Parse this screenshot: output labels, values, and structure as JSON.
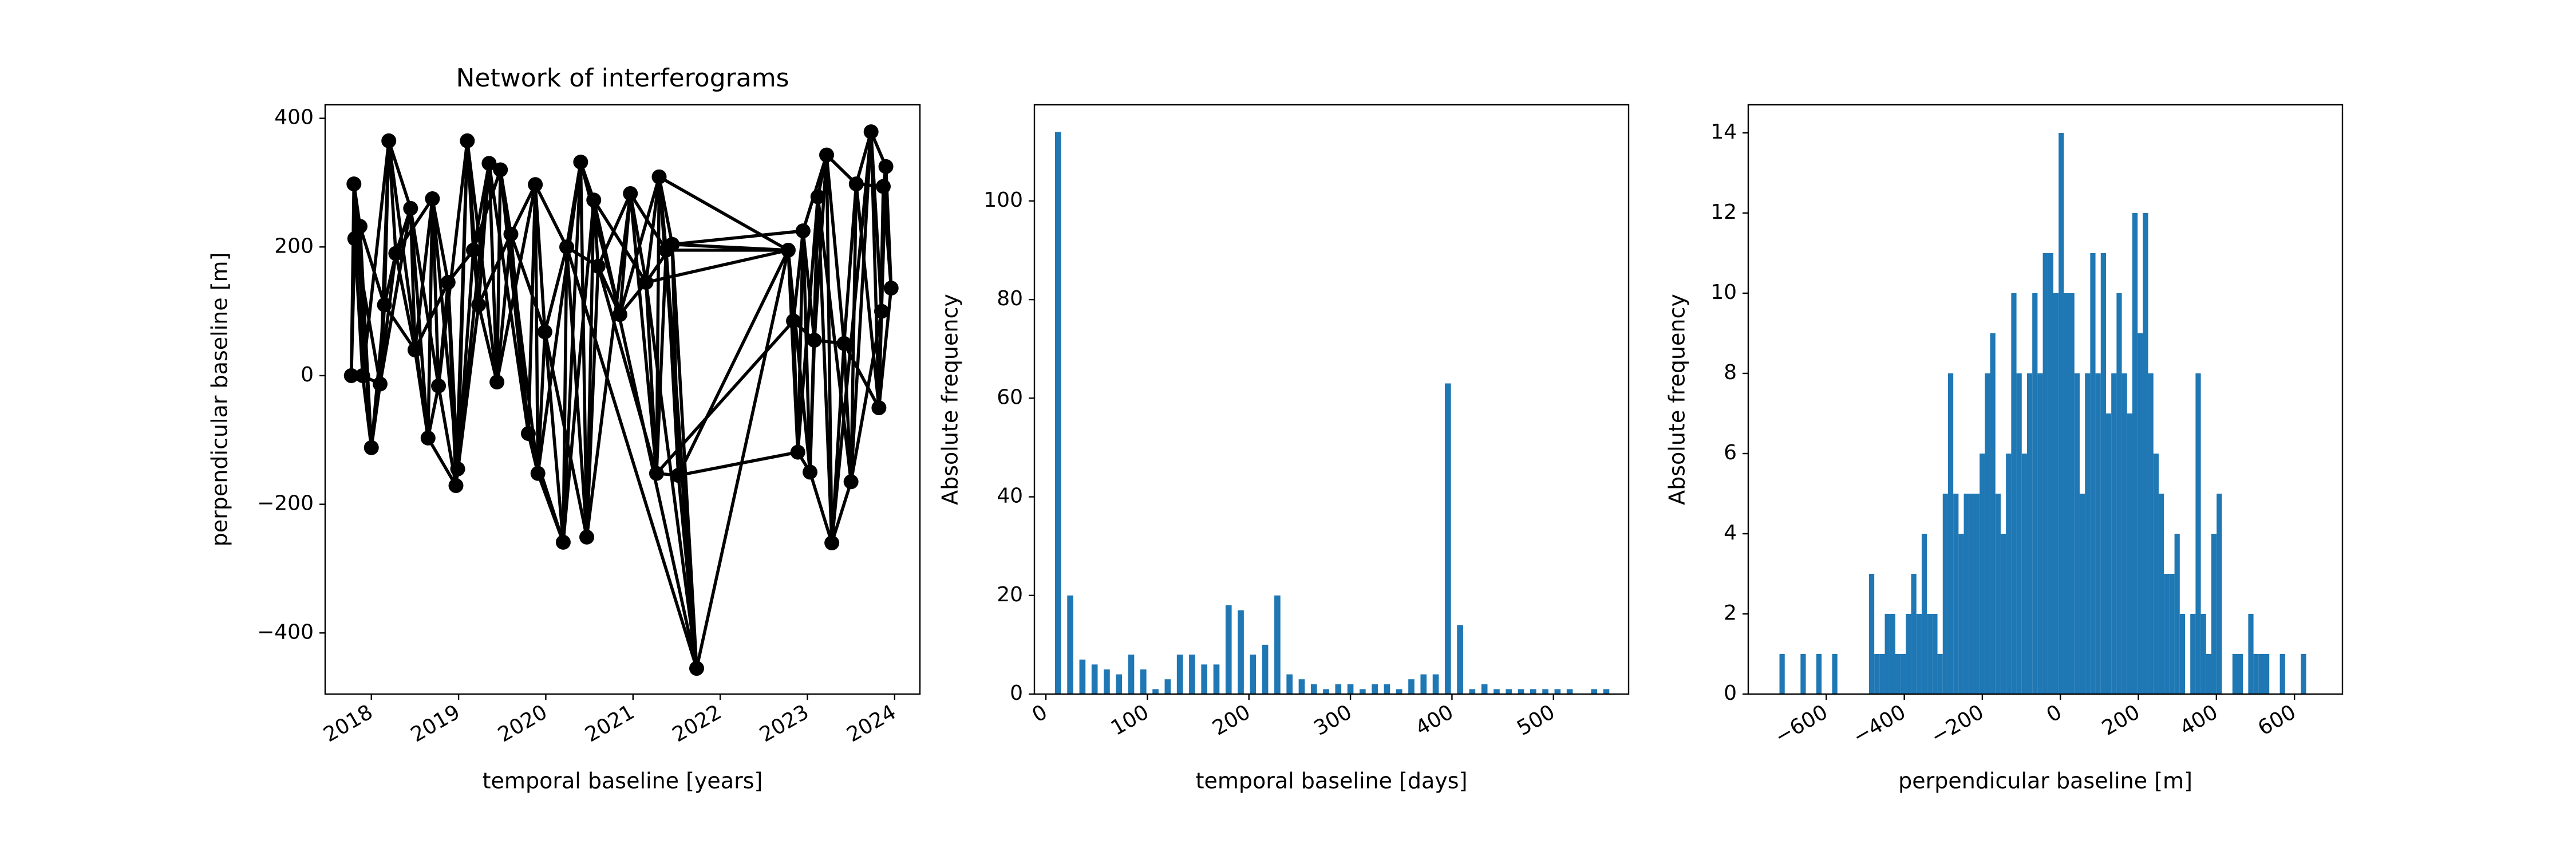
{
  "chart_data": [
    {
      "type": "network",
      "title": "Network of interferograms",
      "xlabel": "temporal baseline [years]",
      "ylabel": "perpendicular baseline [m]",
      "color": "#000000",
      "xlim": [
        2017.47,
        2024.29
      ],
      "xticks": [
        2018,
        2019,
        2020,
        2021,
        2022,
        2023,
        2024
      ],
      "xtick_rotation": 30,
      "ylim": [
        -495,
        421
      ],
      "yticks": [
        {
          "value": -400,
          "label": "−400"
        },
        {
          "value": -200,
          "label": "−200"
        },
        0,
        200,
        400
      ],
      "nodes": {
        "x": [
          2017.77,
          2017.8,
          2017.81,
          2017.87,
          2017.9,
          2018.0,
          2018.1,
          2018.15,
          2018.2,
          2018.28,
          2018.45,
          2018.5,
          2018.65,
          2018.7,
          2018.77,
          2018.88,
          2018.97,
          2018.99,
          2019.1,
          2019.17,
          2019.23,
          2019.35,
          2019.44,
          2019.48,
          2019.6,
          2019.8,
          2019.88,
          2019.91,
          2019.99,
          2020.2,
          2020.24,
          2020.4,
          2020.47,
          2020.55,
          2020.6,
          2020.85,
          2020.97,
          2021.15,
          2021.27,
          2021.3,
          2021.38,
          2021.45,
          2021.52,
          2021.73,
          2022.78,
          2022.84,
          2022.89,
          2022.95,
          2023.03,
          2023.08,
          2023.12,
          2023.22,
          2023.28,
          2023.42,
          2023.5,
          2023.56,
          2023.73,
          2023.82,
          2023.85,
          2023.87,
          2023.9,
          2023.96
        ],
        "y": [
          0,
          298,
          213,
          232,
          0,
          -112,
          -13,
          110,
          365,
          190,
          260,
          40,
          -97,
          275,
          -16,
          145,
          -171,
          -145,
          365,
          195,
          110,
          330,
          -10,
          320,
          220,
          -90,
          297,
          -152,
          68,
          -259,
          200,
          332,
          -251,
          273,
          170,
          95,
          283,
          145,
          -152,
          309,
          195,
          204,
          -155,
          -455,
          195,
          85,
          -119,
          225,
          -150,
          55,
          278,
          343,
          -260,
          50,
          -165,
          298,
          379,
          -50,
          100,
          294,
          325,
          136
        ]
      },
      "edges": [
        [
          0,
          1
        ],
        [
          0,
          2
        ],
        [
          0,
          4
        ],
        [
          1,
          2
        ],
        [
          1,
          3
        ],
        [
          1,
          5
        ],
        [
          2,
          3
        ],
        [
          2,
          4
        ],
        [
          2,
          6
        ],
        [
          3,
          4
        ],
        [
          3,
          5
        ],
        [
          3,
          7
        ],
        [
          4,
          5
        ],
        [
          4,
          6
        ],
        [
          4,
          8
        ],
        [
          5,
          6
        ],
        [
          5,
          7
        ],
        [
          5,
          9
        ],
        [
          6,
          7
        ],
        [
          6,
          8
        ],
        [
          6,
          10
        ],
        [
          7,
          8
        ],
        [
          7,
          9
        ],
        [
          7,
          11
        ],
        [
          8,
          9
        ],
        [
          8,
          10
        ],
        [
          8,
          12
        ],
        [
          9,
          10
        ],
        [
          9,
          11
        ],
        [
          9,
          13
        ],
        [
          10,
          11
        ],
        [
          10,
          12
        ],
        [
          10,
          14
        ],
        [
          11,
          12
        ],
        [
          11,
          13
        ],
        [
          11,
          15
        ],
        [
          12,
          13
        ],
        [
          12,
          14
        ],
        [
          12,
          16
        ],
        [
          13,
          14
        ],
        [
          13,
          15
        ],
        [
          13,
          17
        ],
        [
          14,
          15
        ],
        [
          14,
          16
        ],
        [
          14,
          18
        ],
        [
          15,
          16
        ],
        [
          15,
          17
        ],
        [
          15,
          19
        ],
        [
          16,
          17
        ],
        [
          16,
          18
        ],
        [
          16,
          20
        ],
        [
          17,
          18
        ],
        [
          17,
          19
        ],
        [
          17,
          21
        ],
        [
          18,
          19
        ],
        [
          18,
          20
        ],
        [
          18,
          22
        ],
        [
          19,
          20
        ],
        [
          19,
          21
        ],
        [
          19,
          23
        ],
        [
          20,
          21
        ],
        [
          20,
          22
        ],
        [
          20,
          24
        ],
        [
          21,
          22
        ],
        [
          21,
          23
        ],
        [
          21,
          25
        ],
        [
          22,
          23
        ],
        [
          22,
          24
        ],
        [
          22,
          26
        ],
        [
          23,
          24
        ],
        [
          23,
          25
        ],
        [
          23,
          27
        ],
        [
          24,
          25
        ],
        [
          24,
          26
        ],
        [
          24,
          28
        ],
        [
          25,
          26
        ],
        [
          25,
          27
        ],
        [
          25,
          29
        ],
        [
          26,
          27
        ],
        [
          26,
          28
        ],
        [
          26,
          30
        ],
        [
          27,
          28
        ],
        [
          27,
          29
        ],
        [
          27,
          31
        ],
        [
          28,
          29
        ],
        [
          28,
          30
        ],
        [
          28,
          32
        ],
        [
          29,
          30
        ],
        [
          29,
          31
        ],
        [
          29,
          33
        ],
        [
          30,
          31
        ],
        [
          30,
          32
        ],
        [
          30,
          34
        ],
        [
          31,
          32
        ],
        [
          31,
          33
        ],
        [
          31,
          35
        ],
        [
          32,
          33
        ],
        [
          32,
          34
        ],
        [
          32,
          36
        ],
        [
          33,
          34
        ],
        [
          33,
          35
        ],
        [
          33,
          37
        ],
        [
          34,
          35
        ],
        [
          34,
          36
        ],
        [
          34,
          38
        ],
        [
          35,
          36
        ],
        [
          35,
          37
        ],
        [
          35,
          39
        ],
        [
          36,
          37
        ],
        [
          36,
          38
        ],
        [
          36,
          40
        ],
        [
          37,
          38
        ],
        [
          37,
          39
        ],
        [
          37,
          41
        ],
        [
          38,
          39
        ],
        [
          38,
          40
        ],
        [
          38,
          42
        ],
        [
          39,
          40
        ],
        [
          39,
          41
        ],
        [
          39,
          43
        ],
        [
          40,
          41
        ],
        [
          40,
          42
        ],
        [
          40,
          43
        ],
        [
          41,
          42
        ],
        [
          41,
          43
        ],
        [
          41,
          44
        ],
        [
          42,
          43
        ],
        [
          42,
          44
        ],
        [
          37,
          43
        ],
        [
          33,
          43
        ],
        [
          30,
          43
        ],
        [
          43,
          44
        ],
        [
          40,
          44
        ],
        [
          39,
          44
        ],
        [
          37,
          44
        ],
        [
          38,
          45
        ],
        [
          42,
          46
        ],
        [
          41,
          47
        ],
        [
          44,
          45
        ],
        [
          44,
          46
        ],
        [
          44,
          48
        ],
        [
          45,
          46
        ],
        [
          45,
          47
        ],
        [
          45,
          49
        ],
        [
          46,
          47
        ],
        [
          46,
          48
        ],
        [
          46,
          50
        ],
        [
          47,
          48
        ],
        [
          47,
          49
        ],
        [
          47,
          51
        ],
        [
          48,
          49
        ],
        [
          48,
          50
        ],
        [
          48,
          52
        ],
        [
          49,
          50
        ],
        [
          49,
          51
        ],
        [
          49,
          53
        ],
        [
          50,
          51
        ],
        [
          50,
          52
        ],
        [
          50,
          54
        ],
        [
          51,
          52
        ],
        [
          51,
          53
        ],
        [
          51,
          55
        ],
        [
          52,
          53
        ],
        [
          52,
          54
        ],
        [
          52,
          56
        ],
        [
          53,
          54
        ],
        [
          53,
          55
        ],
        [
          53,
          57
        ],
        [
          54,
          55
        ],
        [
          54,
          56
        ],
        [
          54,
          58
        ],
        [
          55,
          56
        ],
        [
          55,
          57
        ],
        [
          55,
          59
        ],
        [
          56,
          57
        ],
        [
          56,
          58
        ],
        [
          56,
          60
        ],
        [
          57,
          58
        ],
        [
          57,
          59
        ],
        [
          57,
          61
        ],
        [
          58,
          59
        ],
        [
          58,
          60
        ],
        [
          59,
          60
        ],
        [
          59,
          61
        ],
        [
          60,
          61
        ]
      ]
    },
    {
      "type": "histogram",
      "xlabel": "temporal baseline [days]",
      "ylabel": "Absolute frequency",
      "color": "#1f77b4",
      "rwidth": 0.5,
      "xlim": [
        -11.3,
        574
      ],
      "xticks": [
        0,
        100,
        200,
        300,
        400,
        500
      ],
      "xtick_rotation": 30,
      "ylim": [
        0,
        119.5
      ],
      "yticks": [
        0,
        20,
        40,
        60,
        80,
        100
      ],
      "bins": [
        6,
        18,
        30,
        42,
        54,
        66,
        78,
        90,
        102,
        114,
        126,
        138,
        150,
        162,
        174,
        186,
        198,
        210,
        222,
        234,
        246,
        258,
        270,
        282,
        294,
        306,
        318,
        330,
        342,
        354,
        366,
        378,
        390,
        402,
        414,
        426,
        438,
        450,
        462,
        474,
        486,
        498,
        510,
        522,
        534,
        546,
        558
      ],
      "counts": [
        114,
        20,
        7,
        6,
        5,
        4,
        8,
        5,
        1,
        3,
        8,
        8,
        6,
        6,
        18,
        17,
        8,
        10,
        20,
        4,
        3,
        2,
        1,
        2,
        2,
        1,
        2,
        2,
        1,
        3,
        4,
        4,
        63,
        14,
        1,
        2,
        1,
        1,
        1,
        1,
        1,
        1,
        1,
        0,
        1,
        1
      ]
    },
    {
      "type": "histogram",
      "xlabel": "perpendicular baseline [m]",
      "ylabel": "Absolute frequency",
      "color": "#1f77b4",
      "xlim": [
        -800,
        723
      ],
      "xticks": [
        {
          "value": -600,
          "label": "−600"
        },
        {
          "value": -400,
          "label": "−400"
        },
        {
          "value": -200,
          "label": "−200"
        },
        0,
        200,
        400,
        600
      ],
      "xtick_rotation": 30,
      "ylim": [
        0,
        14.7
      ],
      "yticks": [
        0,
        2,
        4,
        6,
        8,
        10,
        12,
        14
      ],
      "bins": [
        -720,
        -706.5,
        -693,
        -679.5,
        -666,
        -652.5,
        -639,
        -625.5,
        -612,
        -598.5,
        -585,
        -571.5,
        -558,
        -544.5,
        -531,
        -517.5,
        -504,
        -490.5,
        -477,
        -463.5,
        -450,
        -436.5,
        -423,
        -409.5,
        -396,
        -382.5,
        -369,
        -355.5,
        -342,
        -328.5,
        -315,
        -301.5,
        -288,
        -274.5,
        -261,
        -247.5,
        -234,
        -220.5,
        -207,
        -193.5,
        -180,
        -166.5,
        -153,
        -139.5,
        -126,
        -112.5,
        -99,
        -85.5,
        -72,
        -58.5,
        -45,
        -31.5,
        -18,
        -4.5,
        9,
        22.5,
        36,
        49.5,
        63,
        76.5,
        90,
        103.5,
        117,
        130.5,
        144,
        157.5,
        171,
        184.5,
        198,
        211.5,
        225,
        238.5,
        252,
        265.5,
        279,
        292.5,
        306,
        319.5,
        333,
        346.5,
        360,
        373.5,
        387,
        400.5,
        414,
        427.5,
        441,
        454.5,
        468,
        481.5,
        495,
        508.5,
        522,
        535.5,
        549,
        562.5,
        576,
        589.5,
        603,
        616.5,
        630
      ],
      "counts": [
        1,
        0,
        0,
        0,
        1,
        0,
        0,
        1,
        0,
        0,
        1,
        0,
        0,
        0,
        0,
        0,
        0,
        3,
        1,
        1,
        2,
        2,
        1,
        1,
        2,
        3,
        2,
        4,
        2,
        2,
        1,
        5,
        8,
        5,
        4,
        5,
        5,
        5,
        6,
        8,
        9,
        5,
        4,
        6,
        10,
        8,
        6,
        8,
        10,
        8,
        11,
        11,
        10,
        14,
        10,
        10,
        8,
        5,
        8,
        11,
        8,
        11,
        7,
        8,
        10,
        8,
        7,
        12,
        9,
        12,
        8,
        6,
        5,
        3,
        3,
        4,
        2,
        0,
        2,
        8,
        2,
        1,
        4,
        5,
        0,
        0,
        1,
        1,
        0,
        2,
        1,
        1,
        1,
        0,
        0,
        1,
        0,
        0,
        0,
        1
      ]
    }
  ]
}
